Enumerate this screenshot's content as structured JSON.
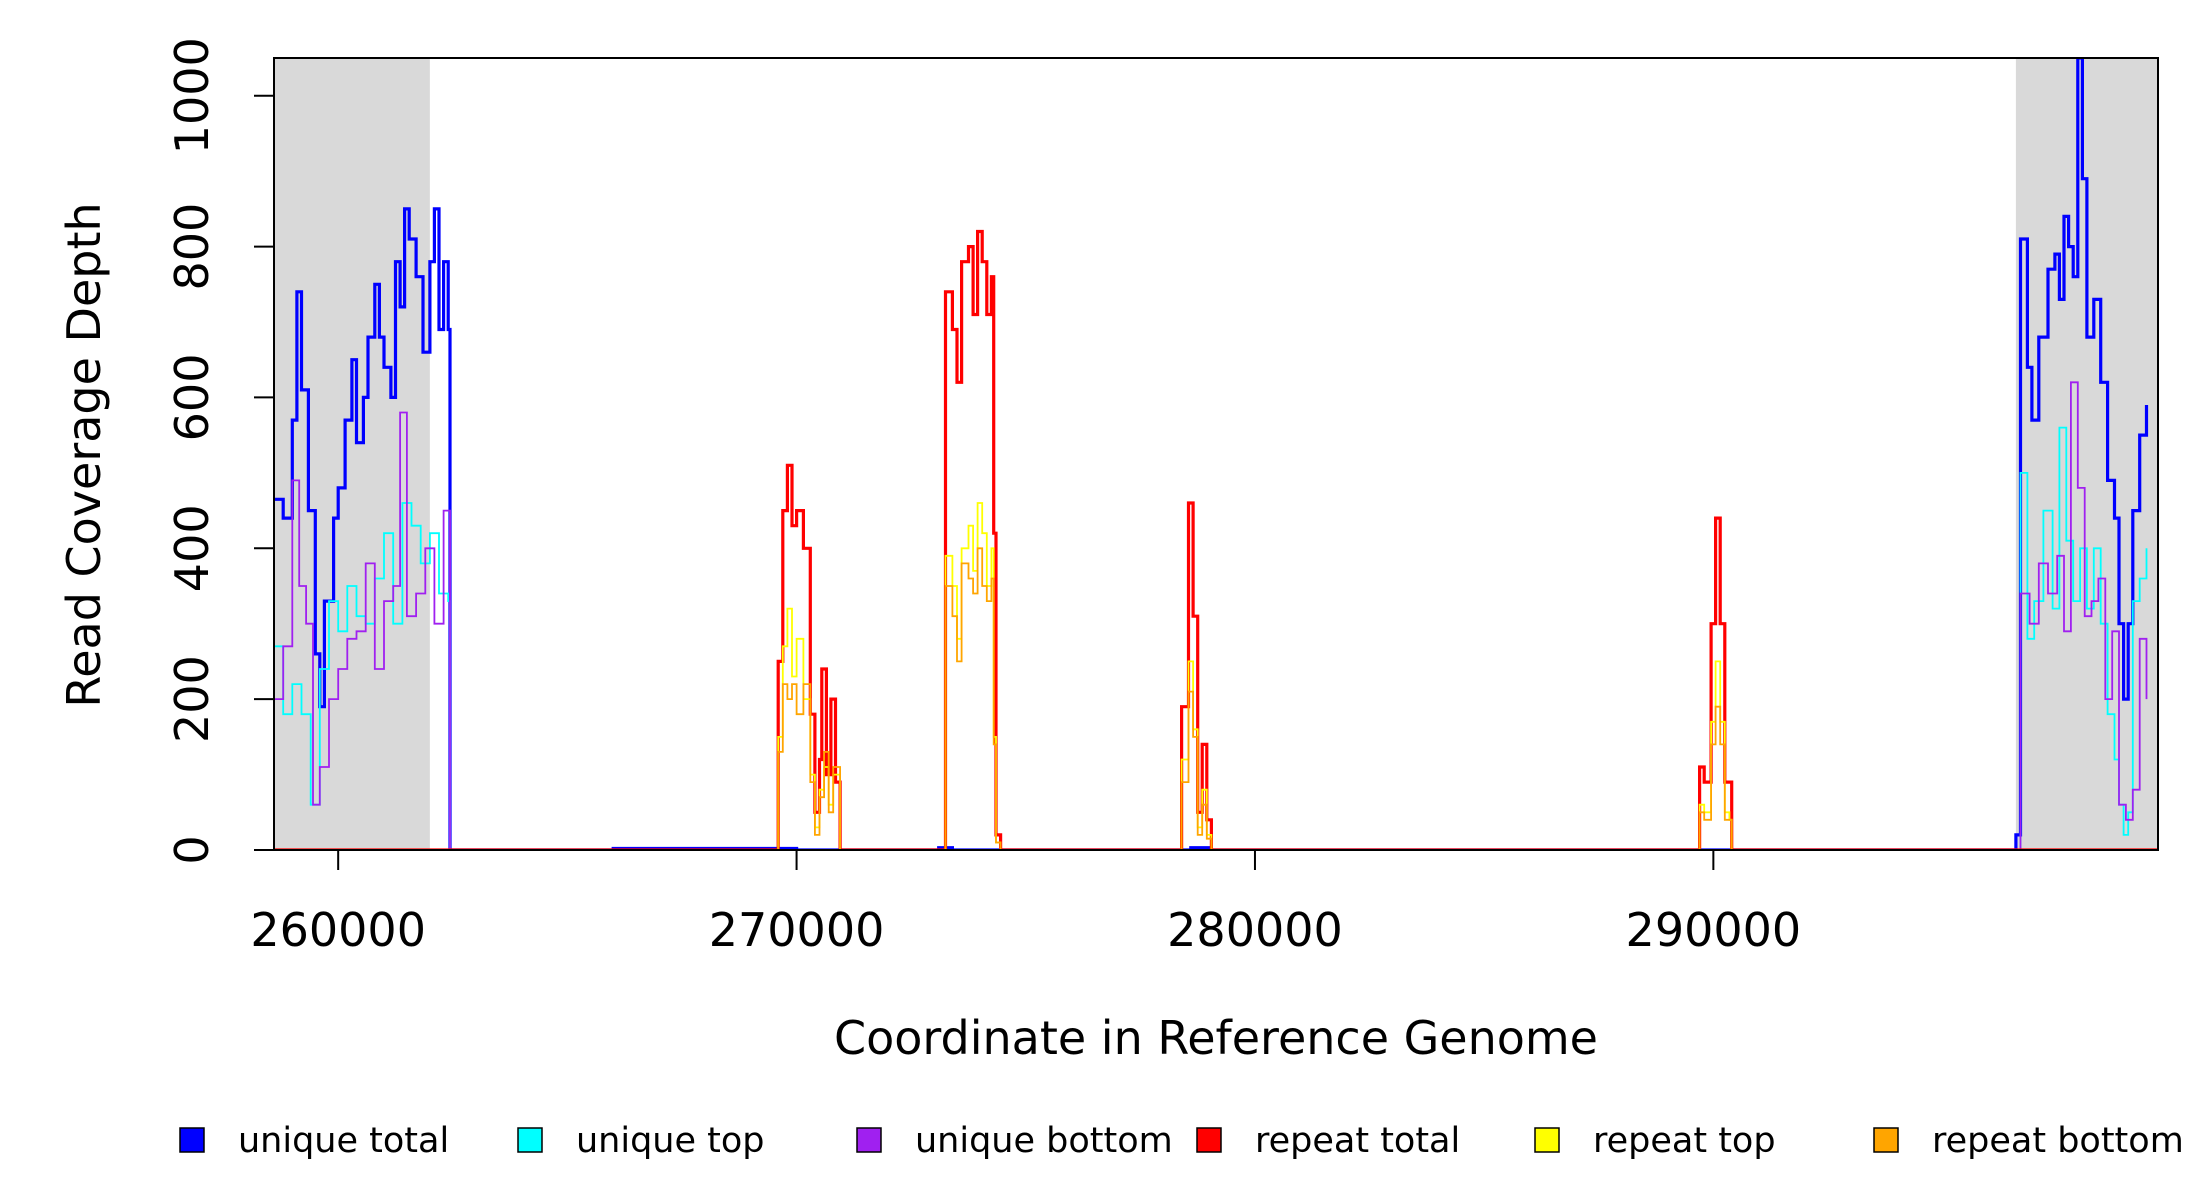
{
  "chart_data": {
    "type": "line",
    "xlabel": "Coordinate in Reference Genome",
    "ylabel": "Read Coverage Depth",
    "xlim": [
      258600,
      299700
    ],
    "ylim": [
      0,
      1050
    ],
    "x_ticks": [
      260000,
      270000,
      280000,
      290000
    ],
    "y_ticks": [
      0,
      200,
      400,
      600,
      800,
      1000
    ],
    "x_tick_labels": [
      "260000",
      "270000",
      "280000",
      "290000"
    ],
    "y_tick_labels": [
      "0",
      "200",
      "400",
      "600",
      "800",
      "1000"
    ],
    "shaded_regions": [
      [
        258600,
        262000
      ],
      [
        296600,
        299700
      ]
    ],
    "shaded_color": "#d9d9d9",
    "legend_position": "bottom",
    "series": [
      {
        "name": "unique total",
        "color": "#0000ff",
        "width": 3.2,
        "points": [
          [
            258600,
            465
          ],
          [
            258800,
            440
          ],
          [
            259000,
            570
          ],
          [
            259100,
            740
          ],
          [
            259200,
            610
          ],
          [
            259350,
            450
          ],
          [
            259500,
            260
          ],
          [
            259600,
            190
          ],
          [
            259700,
            330
          ],
          [
            259900,
            440
          ],
          [
            260000,
            480
          ],
          [
            260150,
            570
          ],
          [
            260300,
            650
          ],
          [
            260400,
            540
          ],
          [
            260550,
            600
          ],
          [
            260650,
            680
          ],
          [
            260800,
            750
          ],
          [
            260900,
            680
          ],
          [
            261000,
            640
          ],
          [
            261150,
            600
          ],
          [
            261250,
            780
          ],
          [
            261350,
            720
          ],
          [
            261450,
            850
          ],
          [
            261550,
            810
          ],
          [
            261700,
            760
          ],
          [
            261850,
            660
          ],
          [
            262000,
            780
          ],
          [
            262100,
            850
          ],
          [
            262200,
            690
          ],
          [
            262300,
            780
          ],
          [
            262400,
            690
          ],
          [
            262440,
            0
          ],
          [
            265000,
            0
          ],
          [
            266000,
            2
          ],
          [
            270000,
            0
          ],
          [
            273000,
            0
          ],
          [
            273100,
            3
          ],
          [
            273400,
            0
          ],
          [
            278000,
            0
          ],
          [
            278600,
            3
          ],
          [
            279000,
            0
          ],
          [
            290000,
            0
          ],
          [
            296500,
            0
          ],
          [
            296600,
            20
          ],
          [
            296700,
            810
          ],
          [
            296850,
            640
          ],
          [
            296950,
            570
          ],
          [
            297100,
            680
          ],
          [
            297300,
            770
          ],
          [
            297450,
            790
          ],
          [
            297550,
            730
          ],
          [
            297650,
            840
          ],
          [
            297750,
            800
          ],
          [
            297850,
            760
          ],
          [
            297950,
            1050
          ],
          [
            298050,
            890
          ],
          [
            298150,
            680
          ],
          [
            298300,
            730
          ],
          [
            298450,
            620
          ],
          [
            298600,
            490
          ],
          [
            298750,
            440
          ],
          [
            298850,
            300
          ],
          [
            298950,
            200
          ],
          [
            299050,
            300
          ],
          [
            299150,
            450
          ],
          [
            299300,
            550
          ],
          [
            299450,
            590
          ]
        ]
      },
      {
        "name": "unique top",
        "color": "#00ffff",
        "width": 1.8,
        "points": [
          [
            258600,
            270
          ],
          [
            258800,
            180
          ],
          [
            259000,
            220
          ],
          [
            259200,
            180
          ],
          [
            259400,
            60
          ],
          [
            259600,
            240
          ],
          [
            259800,
            330
          ],
          [
            260000,
            290
          ],
          [
            260200,
            350
          ],
          [
            260400,
            310
          ],
          [
            260600,
            300
          ],
          [
            260800,
            360
          ],
          [
            261000,
            420
          ],
          [
            261200,
            300
          ],
          [
            261400,
            460
          ],
          [
            261600,
            430
          ],
          [
            261800,
            380
          ],
          [
            262000,
            420
          ],
          [
            262200,
            340
          ],
          [
            262400,
            330
          ],
          [
            262440,
            0
          ],
          [
            296600,
            0
          ],
          [
            296700,
            500
          ],
          [
            296850,
            280
          ],
          [
            297000,
            330
          ],
          [
            297200,
            450
          ],
          [
            297400,
            320
          ],
          [
            297550,
            560
          ],
          [
            297700,
            410
          ],
          [
            297850,
            330
          ],
          [
            298000,
            400
          ],
          [
            298150,
            320
          ],
          [
            298300,
            400
          ],
          [
            298450,
            300
          ],
          [
            298600,
            180
          ],
          [
            298750,
            120
          ],
          [
            298850,
            60
          ],
          [
            298950,
            20
          ],
          [
            299050,
            50
          ],
          [
            299150,
            330
          ],
          [
            299300,
            360
          ],
          [
            299450,
            400
          ]
        ]
      },
      {
        "name": "unique bottom",
        "color": "#a020f0",
        "width": 1.8,
        "points": [
          [
            258600,
            200
          ],
          [
            258800,
            270
          ],
          [
            259000,
            490
          ],
          [
            259150,
            350
          ],
          [
            259300,
            300
          ],
          [
            259450,
            60
          ],
          [
            259600,
            110
          ],
          [
            259800,
            200
          ],
          [
            260000,
            240
          ],
          [
            260200,
            280
          ],
          [
            260400,
            290
          ],
          [
            260600,
            380
          ],
          [
            260800,
            240
          ],
          [
            261000,
            330
          ],
          [
            261200,
            350
          ],
          [
            261350,
            580
          ],
          [
            261500,
            310
          ],
          [
            261700,
            340
          ],
          [
            261900,
            400
          ],
          [
            262100,
            300
          ],
          [
            262300,
            450
          ],
          [
            262440,
            0
          ],
          [
            296600,
            0
          ],
          [
            296700,
            340
          ],
          [
            296900,
            300
          ],
          [
            297100,
            380
          ],
          [
            297300,
            340
          ],
          [
            297500,
            390
          ],
          [
            297650,
            290
          ],
          [
            297800,
            620
          ],
          [
            297950,
            480
          ],
          [
            298100,
            310
          ],
          [
            298250,
            330
          ],
          [
            298400,
            360
          ],
          [
            298550,
            200
          ],
          [
            298700,
            290
          ],
          [
            298850,
            60
          ],
          [
            299000,
            40
          ],
          [
            299150,
            80
          ],
          [
            299300,
            280
          ],
          [
            299450,
            200
          ]
        ]
      },
      {
        "name": "repeat total",
        "color": "#ff0000",
        "width": 3.2,
        "points": [
          [
            258600,
            0
          ],
          [
            269500,
            0
          ],
          [
            269600,
            250
          ],
          [
            269700,
            450
          ],
          [
            269800,
            510
          ],
          [
            269900,
            430
          ],
          [
            270000,
            450
          ],
          [
            270150,
            400
          ],
          [
            270300,
            180
          ],
          [
            270400,
            50
          ],
          [
            270500,
            120
          ],
          [
            270550,
            240
          ],
          [
            270650,
            100
          ],
          [
            270750,
            200
          ],
          [
            270850,
            90
          ],
          [
            270950,
            0
          ],
          [
            273200,
            0
          ],
          [
            273250,
            740
          ],
          [
            273400,
            690
          ],
          [
            273500,
            620
          ],
          [
            273600,
            780
          ],
          [
            273750,
            800
          ],
          [
            273850,
            710
          ],
          [
            273950,
            820
          ],
          [
            274050,
            780
          ],
          [
            274150,
            710
          ],
          [
            274250,
            760
          ],
          [
            274300,
            420
          ],
          [
            274350,
            20
          ],
          [
            274450,
            0
          ],
          [
            278300,
            0
          ],
          [
            278400,
            190
          ],
          [
            278550,
            460
          ],
          [
            278650,
            310
          ],
          [
            278750,
            50
          ],
          [
            278850,
            140
          ],
          [
            278950,
            40
          ],
          [
            279050,
            0
          ],
          [
            289600,
            0
          ],
          [
            289700,
            110
          ],
          [
            289800,
            90
          ],
          [
            289950,
            300
          ],
          [
            290050,
            440
          ],
          [
            290150,
            300
          ],
          [
            290250,
            90
          ],
          [
            290350,
            90
          ],
          [
            290400,
            0
          ],
          [
            299700,
            0
          ]
        ]
      },
      {
        "name": "repeat top",
        "color": "#ffff00",
        "width": 1.8,
        "points": [
          [
            258600,
            0
          ],
          [
            269500,
            0
          ],
          [
            269600,
            150
          ],
          [
            269700,
            270
          ],
          [
            269800,
            320
          ],
          [
            269900,
            230
          ],
          [
            270000,
            280
          ],
          [
            270150,
            200
          ],
          [
            270300,
            100
          ],
          [
            270400,
            30
          ],
          [
            270500,
            80
          ],
          [
            270600,
            110
          ],
          [
            270700,
            60
          ],
          [
            270800,
            100
          ],
          [
            270950,
            0
          ],
          [
            273200,
            0
          ],
          [
            273250,
            390
          ],
          [
            273400,
            350
          ],
          [
            273500,
            280
          ],
          [
            273600,
            400
          ],
          [
            273750,
            430
          ],
          [
            273850,
            370
          ],
          [
            273950,
            460
          ],
          [
            274050,
            420
          ],
          [
            274150,
            350
          ],
          [
            274250,
            400
          ],
          [
            274300,
            150
          ],
          [
            274350,
            10
          ],
          [
            274450,
            0
          ],
          [
            278300,
            0
          ],
          [
            278400,
            120
          ],
          [
            278550,
            250
          ],
          [
            278650,
            160
          ],
          [
            278750,
            30
          ],
          [
            278850,
            80
          ],
          [
            278950,
            20
          ],
          [
            279050,
            0
          ],
          [
            289600,
            0
          ],
          [
            289700,
            60
          ],
          [
            289800,
            50
          ],
          [
            289950,
            170
          ],
          [
            290050,
            250
          ],
          [
            290150,
            170
          ],
          [
            290250,
            50
          ],
          [
            290350,
            40
          ],
          [
            290400,
            0
          ],
          [
            299700,
            0
          ]
        ]
      },
      {
        "name": "repeat bottom",
        "color": "#ffa500",
        "width": 1.8,
        "points": [
          [
            258600,
            0
          ],
          [
            269500,
            0
          ],
          [
            269600,
            130
          ],
          [
            269700,
            220
          ],
          [
            269800,
            200
          ],
          [
            269900,
            220
          ],
          [
            270000,
            180
          ],
          [
            270150,
            220
          ],
          [
            270300,
            90
          ],
          [
            270400,
            20
          ],
          [
            270500,
            70
          ],
          [
            270600,
            130
          ],
          [
            270700,
            50
          ],
          [
            270800,
            110
          ],
          [
            270950,
            0
          ],
          [
            273200,
            0
          ],
          [
            273250,
            350
          ],
          [
            273400,
            310
          ],
          [
            273500,
            250
          ],
          [
            273600,
            380
          ],
          [
            273750,
            360
          ],
          [
            273850,
            340
          ],
          [
            273950,
            400
          ],
          [
            274050,
            350
          ],
          [
            274150,
            330
          ],
          [
            274250,
            360
          ],
          [
            274300,
            140
          ],
          [
            274350,
            10
          ],
          [
            274450,
            0
          ],
          [
            278300,
            0
          ],
          [
            278400,
            90
          ],
          [
            278550,
            210
          ],
          [
            278650,
            150
          ],
          [
            278750,
            20
          ],
          [
            278850,
            60
          ],
          [
            278950,
            15
          ],
          [
            279050,
            0
          ],
          [
            289600,
            0
          ],
          [
            289700,
            50
          ],
          [
            289800,
            40
          ],
          [
            289950,
            140
          ],
          [
            290050,
            190
          ],
          [
            290150,
            140
          ],
          [
            290250,
            40
          ],
          [
            290350,
            40
          ],
          [
            290400,
            0
          ],
          [
            299700,
            0
          ]
        ]
      }
    ]
  }
}
